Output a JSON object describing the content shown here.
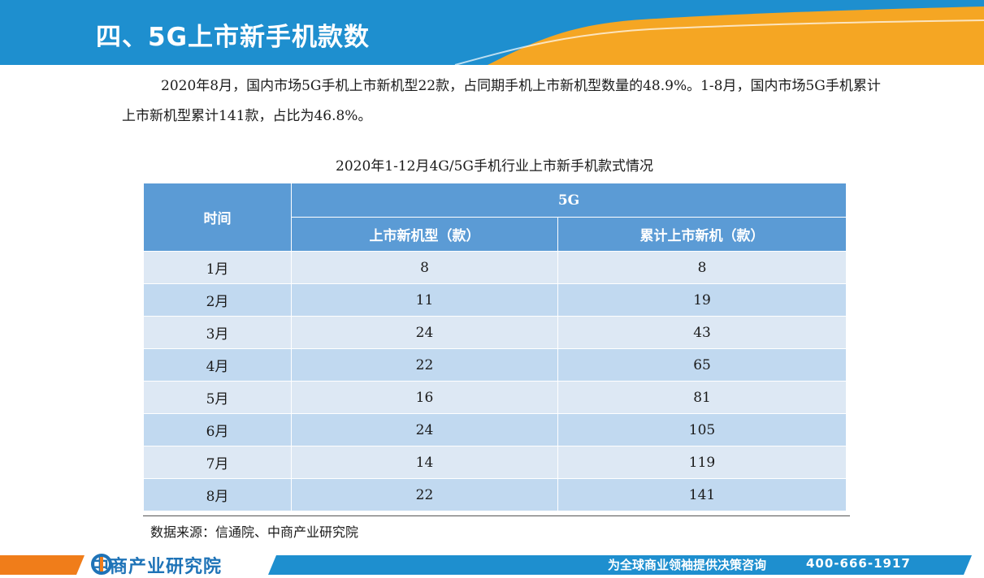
{
  "header": {
    "title": "四、5G上市新手机款数"
  },
  "intro": "2020年8月，国内市场5G手机上市新机型22款，占同期手机上市新机型数量的48.9%。1-8月，国内市场5G手机累计上市新机型累计141款，占比为46.8%。",
  "table": {
    "title": "2020年1-12月4G/5G手机行业上市新手机款式情况",
    "col_time": "时间",
    "group_header": "5G",
    "col_new": "上市新机型（款）",
    "col_cum": "累计上市新机（款）",
    "rows": [
      {
        "month": "1月",
        "new": "8",
        "cum": "8"
      },
      {
        "month": "2月",
        "new": "11",
        "cum": "19"
      },
      {
        "month": "3月",
        "new": "24",
        "cum": "43"
      },
      {
        "month": "4月",
        "new": "22",
        "cum": "65"
      },
      {
        "month": "5月",
        "new": "16",
        "cum": "81"
      },
      {
        "month": "6月",
        "new": "24",
        "cum": "105"
      },
      {
        "month": "7月",
        "new": "14",
        "cum": "119"
      },
      {
        "month": "8月",
        "new": "22",
        "cum": "141"
      }
    ]
  },
  "source": "数据来源：信通院、中商产业研究院",
  "footer": {
    "logo_text": "中商产业研究院",
    "slogan": "为全球商业领袖提供决策咨询",
    "phone": "400-666-1917"
  },
  "colors": {
    "header_blue": "#1e8fcf",
    "accent_orange": "#f5a623",
    "table_header": "#5b9bd5",
    "row_light": "#dde8f4",
    "row_dark": "#c1d9f0"
  }
}
